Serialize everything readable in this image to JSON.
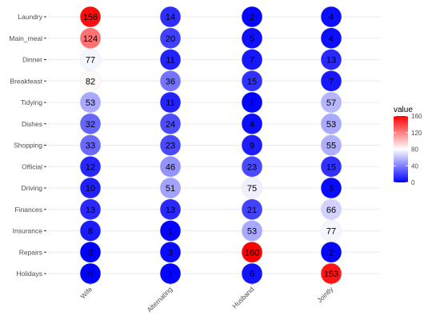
{
  "chart_data": {
    "type": "heatmap",
    "rows": [
      "Laundry",
      "Main_meal",
      "Dinner",
      "Breakfeast",
      "Tidying",
      "Dishes",
      "Shopping",
      "Official",
      "Driving",
      "Finances",
      "Insurance",
      "Repairs",
      "Holidays"
    ],
    "columns": [
      "Wife",
      "Alternating",
      "Husband",
      "Jointly"
    ],
    "values": [
      [
        156,
        14,
        2,
        4
      ],
      [
        124,
        20,
        5,
        4
      ],
      [
        77,
        11,
        7,
        13
      ],
      [
        82,
        36,
        15,
        7
      ],
      [
        53,
        11,
        1,
        57
      ],
      [
        32,
        24,
        4,
        53
      ],
      [
        33,
        23,
        9,
        55
      ],
      [
        12,
        46,
        23,
        15
      ],
      [
        10,
        51,
        75,
        3
      ],
      [
        13,
        13,
        21,
        66
      ],
      [
        8,
        1,
        53,
        77
      ],
      [
        0,
        3,
        160,
        2
      ],
      [
        0,
        1,
        6,
        153
      ]
    ],
    "legend": {
      "title": "value",
      "ticks": [
        0,
        40,
        80,
        120,
        160
      ],
      "range": [
        0,
        160
      ],
      "midpoint": 80
    },
    "colors": {
      "low": "#0000ff",
      "mid": "#ffffff",
      "high": "#ff0000"
    },
    "grid": true
  }
}
